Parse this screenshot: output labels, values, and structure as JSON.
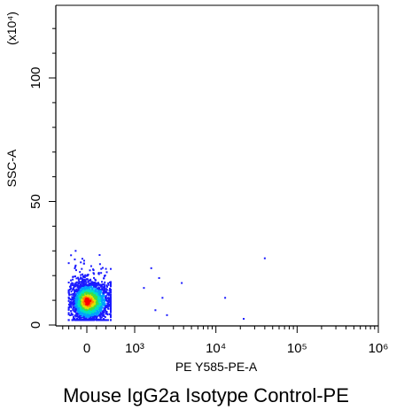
{
  "figure": {
    "caption": "Mouse IgG2a  Isotype Control-PE"
  },
  "chart_data": {
    "type": "scatter",
    "title": "",
    "xlabel": "PE Y585-PE-A",
    "ylabel": "SSC-A",
    "y_multiplier_label": "(x10⁴)",
    "x_scale": "biexponential",
    "xlim": [
      -1000,
      1000000
    ],
    "ylim": [
      0,
      131072
    ],
    "x_ticks": [
      {
        "value": 0,
        "label": "0"
      },
      {
        "value": 1000,
        "label": "10³"
      },
      {
        "value": 10000,
        "label": "10⁴"
      },
      {
        "value": 100000,
        "label": "10⁵"
      },
      {
        "value": 1000000,
        "label": "10⁶"
      }
    ],
    "y_ticks": [
      {
        "value": 0,
        "label": "0"
      },
      {
        "value": 500000,
        "label": "50"
      },
      {
        "value": 1000000,
        "label": "100"
      }
    ],
    "grid": false,
    "legend": "none",
    "density_colors": [
      "#1a1aff",
      "#00a0ff",
      "#00e0c0",
      "#40e040",
      "#e0e000",
      "#ff8000",
      "#ff0000"
    ],
    "population": {
      "center_x": 0,
      "center_y": 95000,
      "spread_x": 250,
      "spread_y": 40000,
      "x_range": [
        -600,
        500
      ],
      "y_range": [
        20000,
        300000
      ]
    },
    "outliers": [
      {
        "x": 1600,
        "y": 230000
      },
      {
        "x": 2000,
        "y": 190000
      },
      {
        "x": 1300,
        "y": 150000
      },
      {
        "x": 2200,
        "y": 110000
      },
      {
        "x": 1800,
        "y": 60000
      },
      {
        "x": 3800,
        "y": 170000
      },
      {
        "x": 13000,
        "y": 110000
      },
      {
        "x": 22000,
        "y": 25000
      },
      {
        "x": 40000,
        "y": 270000
      },
      {
        "x": 2500,
        "y": 40000
      }
    ]
  }
}
